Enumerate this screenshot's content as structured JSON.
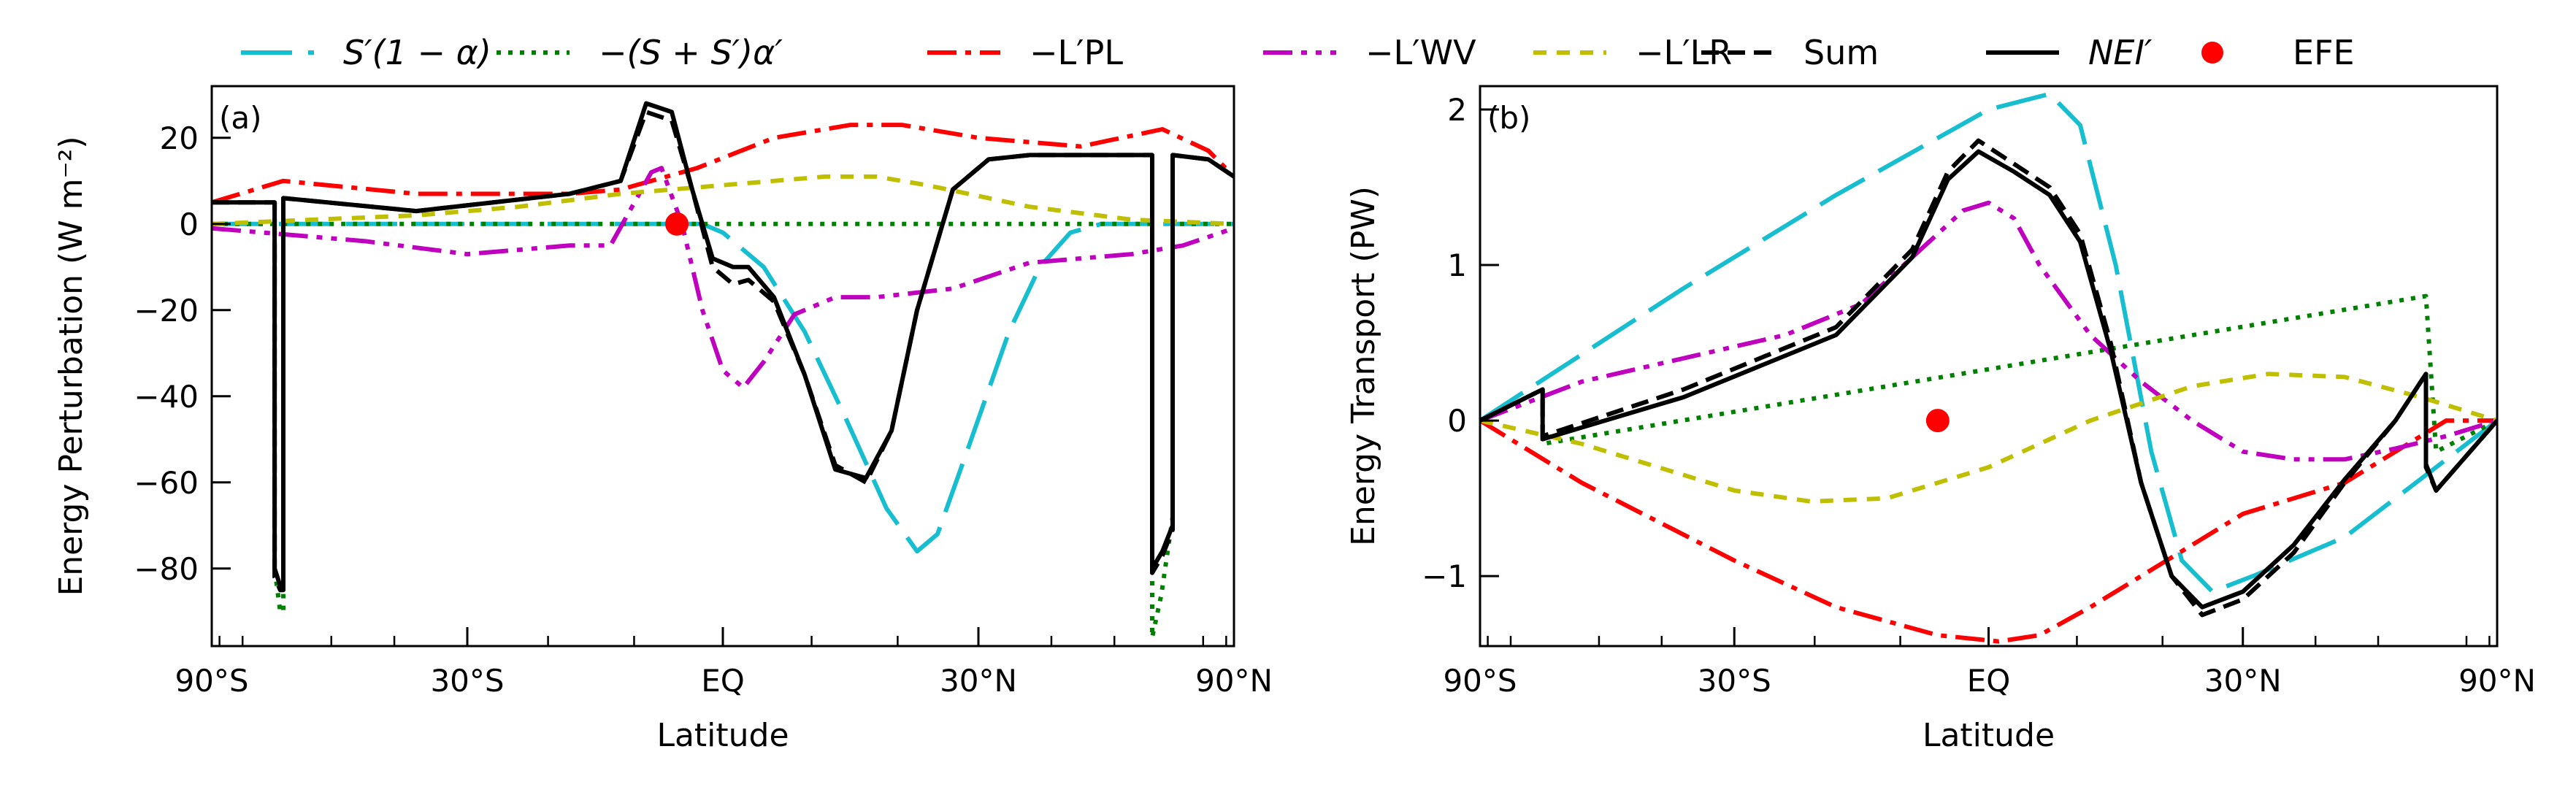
{
  "legend": [
    {
      "key": "sw",
      "label": "S′(1 − α)",
      "color": "#17BECF",
      "dash": "70,22"
    },
    {
      "key": "alb",
      "label": "−(S + S′)α′",
      "color": "#008000",
      "dash": "6,10"
    },
    {
      "key": "pl",
      "label": "−L′PL",
      "color": "#FF0000",
      "dash": "40,12,8,12"
    },
    {
      "key": "wv",
      "label": "−L′WV",
      "color": "#BF00BF",
      "dash": "40,12,8,12,8,12"
    },
    {
      "key": "lr",
      "label": "−L′LR",
      "color": "#BFBF00",
      "dash": "18,14"
    },
    {
      "key": "sum",
      "label": "Sum",
      "color": "#000000",
      "dash": "24,12"
    },
    {
      "key": "nei",
      "label": "NEI′",
      "color": "#000000",
      "dash": ""
    },
    {
      "key": "efe",
      "label": "EFE",
      "color": "#FF0000",
      "dash": "marker"
    }
  ],
  "chart_data": [
    {
      "type": "line",
      "panel_label": "(a)",
      "xlabel": "Latitude",
      "ylabel": "Energy Perturbation (W m⁻²)",
      "xlim": [
        -1.0,
        1.0
      ],
      "ylim": [
        -98,
        32
      ],
      "x_scale": "sine of latitude",
      "xticks": [
        -1.0,
        -0.5,
        0.0,
        0.5,
        1.0
      ],
      "xtick_labels": [
        "90°S",
        "30°S",
        "EQ",
        "30°N",
        "90°N"
      ],
      "yticks": [
        20,
        0,
        -20,
        -40,
        -60,
        -80
      ],
      "ytick_labels": [
        "20",
        "0",
        "−20",
        "−40",
        "−60",
        "−80"
      ],
      "efe": {
        "x": -0.09,
        "y": 0
      },
      "series": [
        {
          "key": "sw",
          "x": [
            -1.0,
            -0.6,
            -0.2,
            -0.1,
            -0.04,
            0.0,
            0.08,
            0.16,
            0.24,
            0.32,
            0.38,
            0.42,
            0.48,
            0.56,
            0.62,
            0.68,
            0.74,
            0.8,
            0.9,
            1.0
          ],
          "y": [
            0,
            0,
            0,
            0,
            0,
            -2,
            -10,
            -25,
            -45,
            -66,
            -76,
            -72,
            -52,
            -25,
            -10,
            -2,
            0,
            0,
            0,
            0
          ]
        },
        {
          "key": "alb",
          "x": [
            -1.0,
            -0.877,
            -0.877,
            -0.866,
            -0.86,
            -0.86,
            0.84,
            0.84,
            0.858,
            0.88,
            0.88,
            1.0
          ],
          "y": [
            0,
            0,
            -80,
            -90,
            -90,
            0,
            0,
            -96,
            -86,
            -68,
            0,
            0
          ]
        },
        {
          "key": "pl",
          "x": [
            -1.0,
            -0.86,
            -0.6,
            -0.3,
            -0.2,
            -0.05,
            0.1,
            0.25,
            0.35,
            0.5,
            0.7,
            0.82,
            0.86,
            0.95,
            1.0
          ],
          "y": [
            5,
            10,
            7,
            7,
            8,
            13,
            20,
            23,
            23,
            20,
            18,
            21,
            22,
            17,
            11
          ]
        },
        {
          "key": "wv",
          "x": [
            -1.0,
            -0.7,
            -0.5,
            -0.3,
            -0.22,
            -0.14,
            -0.12,
            -0.08,
            -0.04,
            0.0,
            0.04,
            0.08,
            0.14,
            0.22,
            0.3,
            0.45,
            0.6,
            0.8,
            0.9,
            1.0
          ],
          "y": [
            -1,
            -4,
            -7,
            -5,
            -5,
            12,
            13,
            0,
            -20,
            -34,
            -38,
            -32,
            -21,
            -17,
            -17,
            -15,
            -9,
            -7,
            -5,
            -1
          ]
        },
        {
          "key": "lr",
          "x": [
            -1.0,
            -0.6,
            -0.4,
            -0.2,
            0.0,
            0.2,
            0.3,
            0.4,
            0.6,
            0.8,
            1.0
          ],
          "y": [
            0,
            2,
            4,
            7,
            9,
            11,
            11,
            9,
            4,
            1,
            0
          ]
        },
        {
          "key": "sum",
          "x": [
            -1.0,
            -0.877,
            -0.877,
            -0.866,
            -0.86,
            -0.86,
            -0.6,
            -0.3,
            -0.2,
            -0.15,
            -0.1,
            -0.06,
            -0.02,
            0.02,
            0.05,
            0.1,
            0.16,
            0.22,
            0.28,
            0.33,
            0.38,
            0.45,
            0.52,
            0.6,
            0.7,
            0.8,
            0.84,
            0.84,
            0.86,
            0.88,
            0.88,
            0.95,
            1.0
          ],
          "y": [
            5,
            5,
            -82,
            -85,
            -85,
            6,
            3,
            7,
            10,
            26,
            24,
            8,
            -10,
            -14,
            -13,
            -18,
            -35,
            -56,
            -60,
            -48,
            -20,
            8,
            15,
            16,
            16,
            16,
            16,
            -81,
            -77,
            -71,
            16,
            15,
            11
          ]
        },
        {
          "key": "nei",
          "x": [
            -1.0,
            -0.877,
            -0.877,
            -0.866,
            -0.86,
            -0.86,
            -0.6,
            -0.3,
            -0.2,
            -0.15,
            -0.1,
            -0.06,
            -0.02,
            0.02,
            0.05,
            0.1,
            0.16,
            0.22,
            0.28,
            0.33,
            0.38,
            0.45,
            0.52,
            0.6,
            0.7,
            0.8,
            0.84,
            0.84,
            0.86,
            0.88,
            0.88,
            0.95,
            1.0
          ],
          "y": [
            5,
            5,
            -80,
            -84,
            -84,
            6,
            3,
            7,
            10,
            28,
            26,
            8,
            -8,
            -10,
            -10,
            -17,
            -35,
            -57,
            -59,
            -48,
            -20,
            8,
            15,
            16,
            16,
            16,
            16,
            -80,
            -76,
            -70,
            16,
            15,
            11
          ]
        }
      ]
    },
    {
      "type": "line",
      "panel_label": "(b)",
      "xlabel": "Latitude",
      "ylabel": "Energy Transport (PW)",
      "xlim": [
        -1.0,
        1.0
      ],
      "ylim": [
        -1.45,
        2.15
      ],
      "x_scale": "sine of latitude",
      "xticks": [
        -1.0,
        -0.5,
        0.0,
        0.5,
        1.0
      ],
      "xtick_labels": [
        "90°S",
        "30°S",
        "EQ",
        "30°N",
        "90°N"
      ],
      "yticks": [
        2,
        1,
        0,
        -1
      ],
      "ytick_labels": [
        "2",
        "1",
        "0",
        "−1"
      ],
      "efe": {
        "x": -0.1,
        "y": 0
      },
      "series": [
        {
          "key": "sw",
          "x": [
            -1.0,
            -0.6,
            -0.3,
            0.0,
            0.12,
            0.18,
            0.25,
            0.32,
            0.38,
            0.44,
            0.52,
            0.7,
            1.0
          ],
          "y": [
            0,
            0.85,
            1.45,
            2.0,
            2.1,
            1.9,
            1.0,
            -0.2,
            -0.9,
            -1.1,
            -1.0,
            -0.75,
            0
          ]
        },
        {
          "key": "alb",
          "x": [
            -1.0,
            -0.877,
            -0.877,
            0.86,
            0.86,
            0.88,
            1.0
          ],
          "y": [
            0,
            0.2,
            -0.15,
            0.8,
            0.8,
            -0.2,
            0
          ]
        },
        {
          "key": "pl",
          "x": [
            -1.0,
            -0.8,
            -0.5,
            -0.3,
            -0.1,
            0.02,
            0.1,
            0.2,
            0.35,
            0.5,
            0.7,
            0.85,
            0.9,
            1.0
          ],
          "y": [
            0,
            -0.4,
            -0.9,
            -1.2,
            -1.38,
            -1.42,
            -1.38,
            -1.2,
            -0.9,
            -0.6,
            -0.4,
            -0.1,
            0.0,
            0
          ]
        },
        {
          "key": "wv",
          "x": [
            -1.0,
            -0.8,
            -0.6,
            -0.4,
            -0.25,
            -0.1,
            -0.05,
            0.0,
            0.05,
            0.1,
            0.2,
            0.3,
            0.4,
            0.5,
            0.6,
            0.7,
            0.8,
            0.9,
            1.0
          ],
          "y": [
            0,
            0.25,
            0.4,
            0.55,
            0.75,
            1.2,
            1.35,
            1.4,
            1.3,
            1.0,
            0.55,
            0.25,
            0.0,
            -0.2,
            -0.25,
            -0.25,
            -0.18,
            -0.1,
            0
          ]
        },
        {
          "key": "lr",
          "x": [
            -1.0,
            -0.8,
            -0.5,
            -0.35,
            -0.2,
            0.0,
            0.2,
            0.4,
            0.55,
            0.7,
            0.85,
            1.0
          ],
          "y": [
            0,
            -0.15,
            -0.45,
            -0.52,
            -0.5,
            -0.3,
            0.0,
            0.22,
            0.3,
            0.28,
            0.15,
            0
          ]
        },
        {
          "key": "sum",
          "x": [
            -1.0,
            -0.877,
            -0.877,
            -0.6,
            -0.3,
            -0.15,
            -0.08,
            -0.02,
            0.05,
            0.12,
            0.18,
            0.24,
            0.3,
            0.36,
            0.42,
            0.5,
            0.6,
            0.7,
            0.8,
            0.86,
            0.86,
            0.88,
            1.0
          ],
          "y": [
            0,
            0.2,
            -0.1,
            0.2,
            0.6,
            1.1,
            1.6,
            1.8,
            1.65,
            1.5,
            1.2,
            0.5,
            -0.4,
            -1.0,
            -1.25,
            -1.15,
            -0.85,
            -0.4,
            0.0,
            0.3,
            -0.3,
            -0.45,
            0
          ]
        },
        {
          "key": "nei",
          "x": [
            -1.0,
            -0.877,
            -0.877,
            -0.6,
            -0.3,
            -0.15,
            -0.08,
            -0.02,
            0.05,
            0.12,
            0.18,
            0.24,
            0.3,
            0.36,
            0.42,
            0.5,
            0.6,
            0.7,
            0.8,
            0.86,
            0.86,
            0.88,
            1.0
          ],
          "y": [
            0,
            0.2,
            -0.12,
            0.15,
            0.55,
            1.05,
            1.55,
            1.73,
            1.6,
            1.45,
            1.15,
            0.45,
            -0.4,
            -1.0,
            -1.2,
            -1.1,
            -0.8,
            -0.38,
            0.0,
            0.3,
            -0.28,
            -0.45,
            0
          ]
        }
      ]
    }
  ]
}
